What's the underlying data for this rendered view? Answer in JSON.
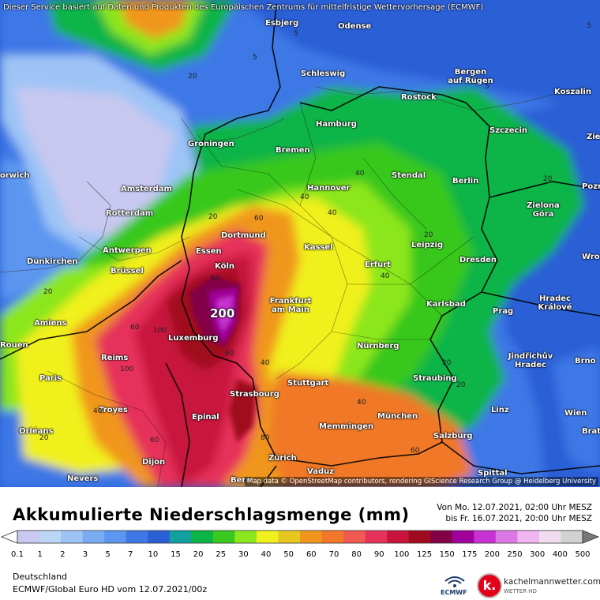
{
  "map": {
    "notice": "Dieser Service basiert auf Daten und Produkten des Europäischen Zentrums für mittelfristige Wettervorhersage (ECMWF)",
    "attribution": "Map data © OpenStreetMap contributors, rendering GIScience Research Group @ Heidelberg University",
    "max_value": "200",
    "cities": [
      {
        "name": "Esbjerg"
      },
      {
        "name": "Odense"
      },
      {
        "name": "Schleswig"
      },
      {
        "name": "Bergen auf Rügen"
      },
      {
        "name": "Rostock"
      },
      {
        "name": "Koszalin"
      },
      {
        "name": "Hamburg"
      },
      {
        "name": "Szczecin"
      },
      {
        "name": "Groningen"
      },
      {
        "name": "Bremen"
      },
      {
        "name": "orwich"
      },
      {
        "name": "Amsterdam"
      },
      {
        "name": "Stendal"
      },
      {
        "name": "Berlin"
      },
      {
        "name": "Hannover"
      },
      {
        "name": "Rotterdam"
      },
      {
        "name": "Zielona Góra"
      },
      {
        "name": "Dortmund"
      },
      {
        "name": "Antwerpen"
      },
      {
        "name": "Essen"
      },
      {
        "name": "Kassel"
      },
      {
        "name": "Leipzig"
      },
      {
        "name": "Dünkirchen"
      },
      {
        "name": "Köln"
      },
      {
        "name": "Erfurt"
      },
      {
        "name": "Dresden"
      },
      {
        "name": "Brüssel"
      },
      {
        "name": "Wro"
      },
      {
        "name": "Frankfurt am Main"
      },
      {
        "name": "Karlsbad"
      },
      {
        "name": "Hradec Králové"
      },
      {
        "name": "Amiens"
      },
      {
        "name": "Prag"
      },
      {
        "name": "Luxemburg"
      },
      {
        "name": "Nürnberg"
      },
      {
        "name": "Jindřichův Hradec"
      },
      {
        "name": "Reims"
      },
      {
        "name": "Paris"
      },
      {
        "name": "Stuttgart"
      },
      {
        "name": "Straubing"
      },
      {
        "name": "Brno"
      },
      {
        "name": "Strasbourg"
      },
      {
        "name": "Troyes"
      },
      {
        "name": "Epinal"
      },
      {
        "name": "München"
      },
      {
        "name": "Linz"
      },
      {
        "name": "Wien"
      },
      {
        "name": "Memmingen"
      },
      {
        "name": "Orléans"
      },
      {
        "name": "Salzburg"
      },
      {
        "name": "Brat"
      },
      {
        "name": "Dijon"
      },
      {
        "name": "Zürich"
      },
      {
        "name": "Vaduz"
      },
      {
        "name": "Nevers"
      },
      {
        "name": "Bern"
      },
      {
        "name": "Spittal"
      },
      {
        "name": "Pozn"
      },
      {
        "name": "Zie"
      },
      {
        "name": "Rouen"
      }
    ],
    "contour_labels": [
      "5",
      "5",
      "5",
      "5",
      "20",
      "20",
      "40",
      "40",
      "40",
      "60",
      "40",
      "20",
      "20",
      "20",
      "100",
      "60",
      "100",
      "40",
      "40",
      "40",
      "60",
      "80",
      "60",
      "60",
      "20",
      "20",
      "60",
      "20"
    ]
  },
  "legend": {
    "title": "Akkumulierte Niederschlagsmenge (mm)",
    "period_from": "Von Mo. 12.07.2021, 02:00 Uhr MESZ",
    "period_to": "bis Fr. 16.07.2021, 20:00 Uhr MESZ",
    "region": "Deutschland",
    "model": "ECMWF/Global Euro HD vom  12.07.2021/00z",
    "ecmwf_label": "ECMWF",
    "brand_name": "kachelmannwetter.com",
    "brand_sub": "WETTER HD",
    "brand_letter": "k.",
    "ticks": [
      "0.1",
      "1",
      "2",
      "3",
      "5",
      "7",
      "10",
      "15",
      "20",
      "25",
      "30",
      "40",
      "50",
      "60",
      "70",
      "80",
      "90",
      "100",
      "125",
      "150",
      "175",
      "200",
      "250",
      "300",
      "400",
      "500"
    ],
    "colors": [
      "#c8c8f0",
      "#bcd6f8",
      "#9ec4f6",
      "#7aacf4",
      "#5c96f0",
      "#3e78e6",
      "#2a5fd6",
      "#12a0a0",
      "#0ab446",
      "#39c81e",
      "#8ce61e",
      "#f0f01e",
      "#e6c81e",
      "#f0961e",
      "#f07828",
      "#f05a50",
      "#e6325a",
      "#c8143c",
      "#a00a1e",
      "#820046",
      "#a0009b",
      "#c832d2",
      "#dc78e6",
      "#f0b4f0",
      "#f0dcf0",
      "#d2d2d2"
    ]
  }
}
